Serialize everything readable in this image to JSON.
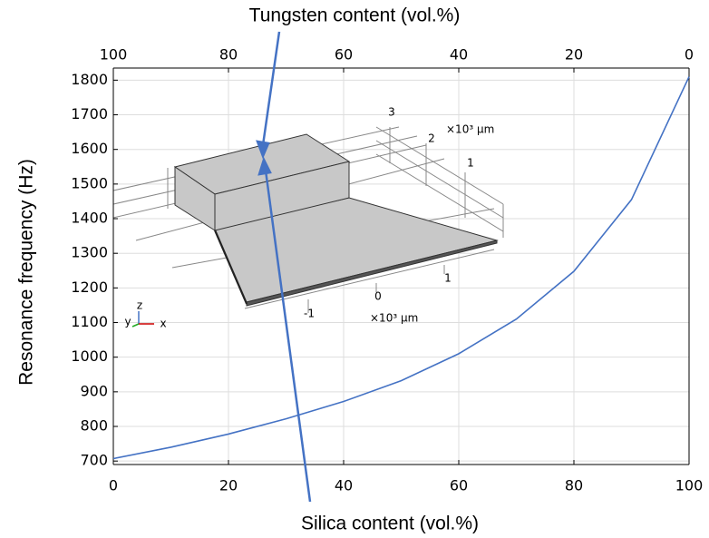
{
  "chart_data": {
    "type": "line",
    "xlabel": "Silica content (vol.%)",
    "x2label": "Tungsten content (vol.%)",
    "ylabel": "Resonance frequency (Hz)",
    "x": [
      0,
      10,
      20,
      30,
      40,
      50,
      60,
      70,
      80,
      90,
      100
    ],
    "series": [
      {
        "color": "#4472c4",
        "values": [
          707,
          740,
          778,
          822,
          872,
          932,
          1010,
          1110,
          1248,
          1455,
          1810
        ]
      }
    ],
    "xlim": [
      0,
      100
    ],
    "xticks": [
      0,
      20,
      40,
      60,
      80,
      100
    ],
    "x2lim": [
      100,
      0
    ],
    "x2ticks": [
      100,
      80,
      60,
      40,
      20,
      0
    ],
    "ylim": [
      690,
      1835
    ],
    "yticks": [
      700,
      800,
      900,
      1000,
      1100,
      1200,
      1300,
      1400,
      1500,
      1600,
      1700,
      1800
    ],
    "grid": true,
    "inset_labels": [
      "3",
      "2",
      "×10³ μm",
      "1",
      "1",
      "0",
      "-1",
      "×10³ μm",
      "z",
      "y",
      "x"
    ]
  }
}
